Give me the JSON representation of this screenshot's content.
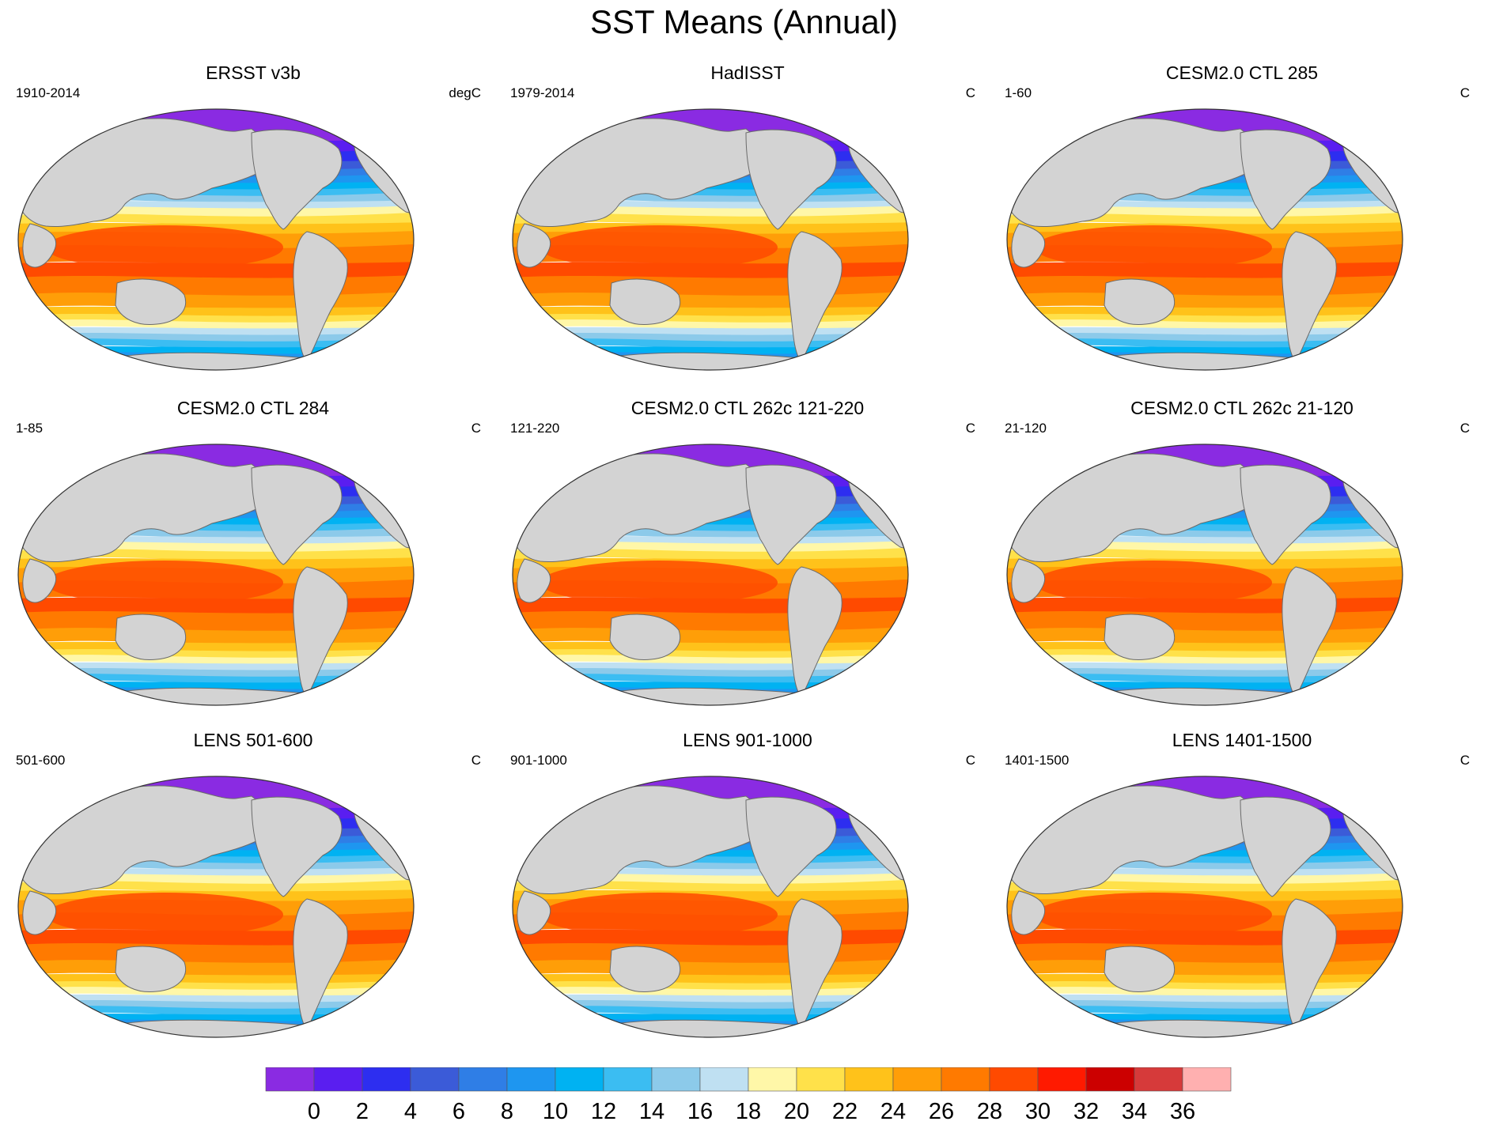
{
  "title": "SST Means (Annual)",
  "colors": {
    "land": "#d3d3d3",
    "coast": "#6b6b6b",
    "ocean_levels": [
      "#8a2be2",
      "#5a1ef0",
      "#2d2ef0",
      "#3b5bd8",
      "#2f7ee6",
      "#1e96f0",
      "#00b2f2",
      "#3bbdf2",
      "#8ccaea",
      "#bfe0f2",
      "#fff7a8",
      "#ffe14a",
      "#ffc21a",
      "#ff9e08",
      "#ff7a00",
      "#ff4a00",
      "#ff1a00",
      "#cc0000",
      "#d63a3a",
      "#ffb0b0"
    ]
  },
  "panels": [
    {
      "title": "ERSST v3b",
      "left": "1910-2014",
      "right": "degC"
    },
    {
      "title": "HadISST",
      "left": "1979-2014",
      "right": "C"
    },
    {
      "title": "CESM2.0 CTL 285",
      "left": "1-60",
      "right": "C"
    },
    {
      "title": "CESM2.0 CTL 284",
      "left": "1-85",
      "right": "C"
    },
    {
      "title": "CESM2.0 CTL 262c 121-220",
      "left": "121-220",
      "right": "C"
    },
    {
      "title": "CESM2.0 CTL 262c 21-120",
      "left": "21-120",
      "right": "C"
    },
    {
      "title": "LENS 501-600",
      "left": "501-600",
      "right": "C"
    },
    {
      "title": "LENS 901-1000",
      "left": "901-1000",
      "right": "C"
    },
    {
      "title": "LENS 1401-1500",
      "left": "1401-1500",
      "right": "C"
    }
  ],
  "colorbar": {
    "labels": [
      "0",
      "2",
      "4",
      "6",
      "8",
      "10",
      "12",
      "14",
      "16",
      "18",
      "20",
      "22",
      "24",
      "26",
      "28",
      "30",
      "32",
      "34",
      "36"
    ]
  }
}
